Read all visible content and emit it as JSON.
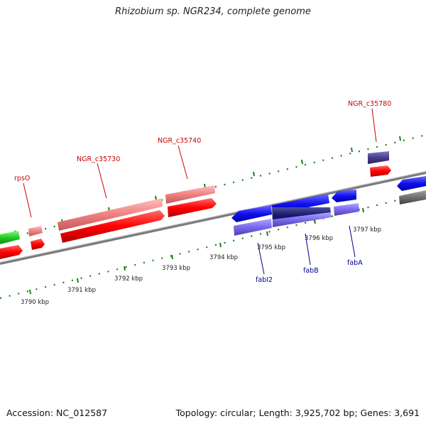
{
  "title": "Rhizobium sp. NGR234, complete genome",
  "accession_text": "Accession: NC_012587",
  "summary_text": "Topology: circular; Length: 3,925,702 bp; Genes: 3,691",
  "colors": {
    "forward_cds": "#ff0000",
    "forward_rna": "#f08080",
    "reverse_cds": "#0000ee",
    "reverse_rna": "#7b68ee",
    "label_forward": "#cc0000",
    "label_reverse": "#00008b",
    "ticks": "#1a7f1a",
    "backbone": "#808080"
  },
  "kbp_labels": [
    {
      "id": "kbp-3790",
      "text": "3790 kbp"
    },
    {
      "id": "kbp-3791",
      "text": "3791 kbp"
    },
    {
      "id": "kbp-3792",
      "text": "3792 kbp"
    },
    {
      "id": "kbp-3793",
      "text": "3793 kbp"
    },
    {
      "id": "kbp-3794",
      "text": "3794 kbp"
    },
    {
      "id": "kbp-3795",
      "text": "3795 kbp"
    },
    {
      "id": "kbp-3796",
      "text": "3796 kbp"
    },
    {
      "id": "kbp-3797",
      "text": "3797 kbp"
    }
  ],
  "gene_labels": [
    {
      "id": "gene-label-rpso",
      "text": "rpsO",
      "strand": "forward"
    },
    {
      "id": "gene-label-ngr-c35730",
      "text": "NGR_c35730",
      "strand": "forward"
    },
    {
      "id": "gene-label-ngr-c35740",
      "text": "NGR_c35740",
      "strand": "forward"
    },
    {
      "id": "gene-label-ngr-c35780",
      "text": "NGR_c35780",
      "strand": "forward"
    },
    {
      "id": "gene-label-fabi2",
      "text": "fabI2",
      "strand": "reverse"
    },
    {
      "id": "gene-label-fabb",
      "text": "fabB",
      "strand": "reverse"
    },
    {
      "id": "gene-label-faba",
      "text": "fabA",
      "strand": "reverse"
    }
  ]
}
